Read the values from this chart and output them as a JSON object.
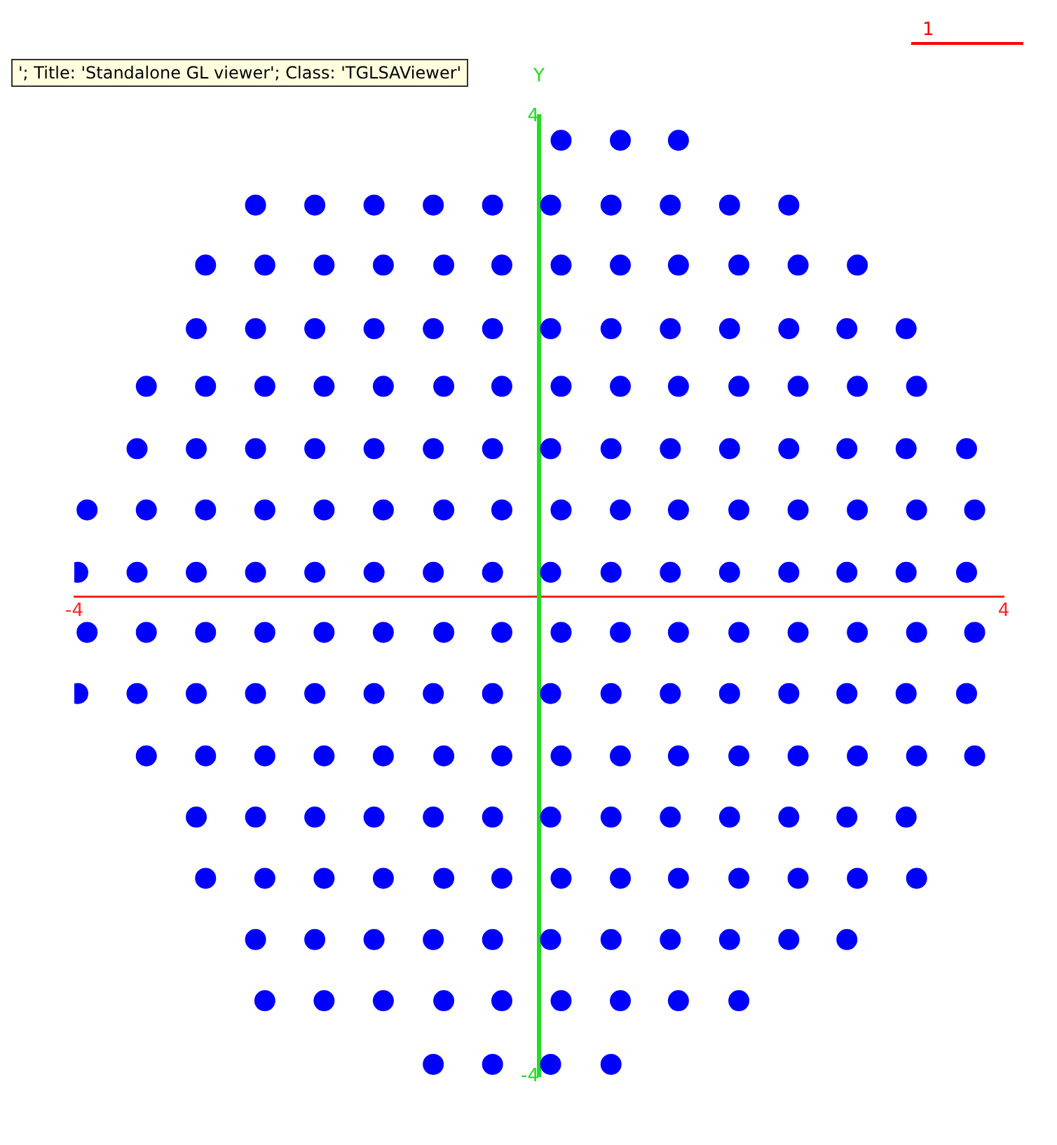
{
  "chart_data": {
    "type": "scatter",
    "ylabel": "Y",
    "xlim": [
      -4,
      4
    ],
    "ylim": [
      -4,
      4
    ],
    "xticks": [
      -4,
      4
    ],
    "yticks": [
      -4,
      4
    ],
    "grid": false,
    "legend": false,
    "marker": "circle",
    "annotations": [
      "'; Title: 'Standalone GL viewer'; Class: 'TGLSAViewer'",
      "1"
    ],
    "series": [
      {
        "color": "#0000ff",
        "x": [
          0.19,
          0.7,
          1.2,
          -2.44,
          -1.93,
          -1.42,
          -0.91,
          -0.4,
          0.1,
          0.62,
          1.13,
          1.64,
          2.15,
          -2.87,
          -2.36,
          -1.85,
          -1.34,
          -0.82,
          -0.32,
          0.19,
          0.7,
          1.2,
          1.72,
          2.23,
          2.74,
          -2.95,
          -2.44,
          -1.93,
          -1.42,
          -0.91,
          -0.4,
          0.1,
          0.62,
          1.13,
          1.64,
          2.15,
          2.65,
          3.16,
          -3.38,
          -2.87,
          -2.36,
          -1.85,
          -1.34,
          -0.82,
          -0.32,
          0.19,
          0.7,
          1.2,
          1.72,
          2.23,
          2.74,
          3.25,
          -3.46,
          -2.95,
          -2.44,
          -1.93,
          -1.42,
          -0.91,
          -0.4,
          0.1,
          0.62,
          1.13,
          1.64,
          2.15,
          2.65,
          3.16,
          3.68,
          -3.89,
          -3.38,
          -2.87,
          -2.36,
          -1.85,
          -1.34,
          -0.82,
          -0.32,
          0.19,
          0.7,
          1.2,
          1.72,
          2.23,
          2.74,
          3.25,
          3.75,
          -3.97,
          -3.46,
          -2.95,
          -2.44,
          -1.93,
          -1.42,
          -0.91,
          -0.4,
          0.1,
          0.62,
          1.13,
          1.64,
          2.15,
          2.65,
          3.16,
          3.68,
          -3.89,
          -3.38,
          -2.87,
          -2.36,
          -1.85,
          -1.34,
          -0.82,
          -0.32,
          0.19,
          0.7,
          1.2,
          1.72,
          2.23,
          2.74,
          3.25,
          3.75,
          -3.97,
          -3.46,
          -2.95,
          -2.44,
          -1.93,
          -1.42,
          -0.91,
          -0.4,
          0.1,
          0.62,
          1.13,
          1.64,
          2.15,
          2.65,
          3.16,
          3.68,
          -3.38,
          -2.87,
          -2.36,
          -1.85,
          -1.34,
          -0.82,
          -0.32,
          0.19,
          0.7,
          1.2,
          1.72,
          2.23,
          2.74,
          3.25,
          3.75,
          -2.95,
          -2.44,
          -1.93,
          -1.42,
          -0.91,
          -0.4,
          0.1,
          0.62,
          1.13,
          1.64,
          2.15,
          2.65,
          3.16,
          -2.87,
          -2.36,
          -1.85,
          -1.34,
          -0.82,
          -0.32,
          0.19,
          0.7,
          1.2,
          1.72,
          2.23,
          2.74,
          3.25,
          -2.44,
          -1.93,
          -1.42,
          -0.91,
          -0.4,
          0.1,
          0.62,
          1.13,
          1.64,
          2.15,
          2.65,
          -2.36,
          -1.85,
          -1.34,
          -0.82,
          -0.32,
          0.19,
          0.7,
          1.2,
          1.72,
          -0.91,
          -0.4,
          0.1,
          0.62
        ],
        "values": [
          3.8,
          3.8,
          3.8,
          3.26,
          3.26,
          3.26,
          3.26,
          3.26,
          3.26,
          3.26,
          3.26,
          3.26,
          3.26,
          2.76,
          2.76,
          2.76,
          2.76,
          2.76,
          2.76,
          2.76,
          2.76,
          2.76,
          2.76,
          2.76,
          2.76,
          2.23,
          2.23,
          2.23,
          2.23,
          2.23,
          2.23,
          2.23,
          2.23,
          2.23,
          2.23,
          2.23,
          2.23,
          2.23,
          1.75,
          1.75,
          1.75,
          1.75,
          1.75,
          1.75,
          1.75,
          1.75,
          1.75,
          1.75,
          1.75,
          1.75,
          1.75,
          1.75,
          1.23,
          1.23,
          1.23,
          1.23,
          1.23,
          1.23,
          1.23,
          1.23,
          1.23,
          1.23,
          1.23,
          1.23,
          1.23,
          1.23,
          1.23,
          0.72,
          0.72,
          0.72,
          0.72,
          0.72,
          0.72,
          0.72,
          0.72,
          0.72,
          0.72,
          0.72,
          0.72,
          0.72,
          0.72,
          0.72,
          0.72,
          0.2,
          0.2,
          0.2,
          0.2,
          0.2,
          0.2,
          0.2,
          0.2,
          0.2,
          0.2,
          0.2,
          0.2,
          0.2,
          0.2,
          0.2,
          0.2,
          -0.3,
          -0.3,
          -0.3,
          -0.3,
          -0.3,
          -0.3,
          -0.3,
          -0.3,
          -0.3,
          -0.3,
          -0.3,
          -0.3,
          -0.3,
          -0.3,
          -0.3,
          -0.3,
          -0.81,
          -0.81,
          -0.81,
          -0.81,
          -0.81,
          -0.81,
          -0.81,
          -0.81,
          -0.81,
          -0.81,
          -0.81,
          -0.81,
          -0.81,
          -0.81,
          -0.81,
          -0.81,
          -1.33,
          -1.33,
          -1.33,
          -1.33,
          -1.33,
          -1.33,
          -1.33,
          -1.33,
          -1.33,
          -1.33,
          -1.33,
          -1.33,
          -1.33,
          -1.33,
          -1.33,
          -1.84,
          -1.84,
          -1.84,
          -1.84,
          -1.84,
          -1.84,
          -1.84,
          -1.84,
          -1.84,
          -1.84,
          -1.84,
          -1.84,
          -1.84,
          -2.35,
          -2.35,
          -2.35,
          -2.35,
          -2.35,
          -2.35,
          -2.35,
          -2.35,
          -2.35,
          -2.35,
          -2.35,
          -2.35,
          -2.35,
          -2.86,
          -2.86,
          -2.86,
          -2.86,
          -2.86,
          -2.86,
          -2.86,
          -2.86,
          -2.86,
          -2.86,
          -2.86,
          -3.37,
          -3.37,
          -3.37,
          -3.37,
          -3.37,
          -3.37,
          -3.37,
          -3.37,
          -3.37,
          -3.9,
          -3.9,
          -3.9,
          -3.9
        ]
      }
    ]
  }
}
